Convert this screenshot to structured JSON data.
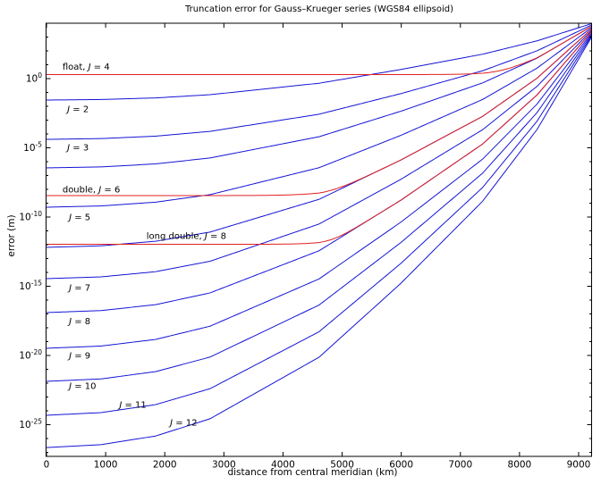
{
  "figure": {
    "title": "Truncation error for Gauss–Krueger series (WGS84 ellipsoid)",
    "xlabel": "distance from central meridian (km)",
    "ylabel": "error (m)",
    "background": "#ffffff"
  },
  "chart_data": {
    "type": "line",
    "title": "Truncation error for Gauss–Krueger series (WGS84 ellipsoid)",
    "xlabel": "distance from central meridian (km)",
    "ylabel": "error (m)",
    "x_axis": {
      "min": 0,
      "max": 9220,
      "tick_step": 1000,
      "tick_labels": [
        "0",
        "1000",
        "2000",
        "3000",
        "4000",
        "5000",
        "6000",
        "7000",
        "8000",
        "9000"
      ]
    },
    "y_axis": {
      "scale": "log10",
      "unit": "m",
      "top_exponent": 4.0,
      "bottom_exponent": -27.3,
      "major_tick_exponents": [
        0,
        -5,
        -10,
        -15,
        -20,
        -25
      ],
      "minor_ticks": "every decade"
    },
    "colors": {
      "truncation_curve": "#1414d6",
      "roundoff_curve": "#e02020",
      "axis": "#000000",
      "text": "#000000"
    },
    "legend_position": "none",
    "grid": false,
    "shape_profile": {
      "comment": "normalized decay of log10(error) gap from start value to convergence value vs normalized distance",
      "t": [
        0,
        0.1,
        0.2,
        0.3,
        0.4,
        0.5,
        0.65,
        0.8,
        0.9,
        1
      ],
      "g": [
        1,
        0.993,
        0.972,
        0.93,
        0.855,
        0.78,
        0.6,
        0.4,
        0.225,
        0
      ]
    },
    "truncation_series": [
      {
        "J": 2,
        "start_exponent": -1.55,
        "end_exponent": 3.97
      },
      {
        "J": 3,
        "start_exponent": -4.39,
        "end_exponent": 3.87
      },
      {
        "J": 4,
        "start_exponent": -6.45,
        "end_exponent": 3.78
      },
      {
        "J": 5,
        "start_exponent": -9.29,
        "end_exponent": 3.68
      },
      {
        "J": 6,
        "start_exponent": -12.19,
        "end_exponent": 3.58
      },
      {
        "J": 7,
        "start_exponent": -14.45,
        "end_exponent": 3.48
      },
      {
        "J": 8,
        "start_exponent": -16.9,
        "end_exponent": 3.39
      },
      {
        "J": 9,
        "start_exponent": -19.48,
        "end_exponent": 3.29
      },
      {
        "J": 10,
        "start_exponent": -21.87,
        "end_exponent": 3.19
      },
      {
        "J": 11,
        "start_exponent": -24.32,
        "end_exponent": 3.1
      },
      {
        "J": 12,
        "start_exponent": -26.65,
        "end_exponent": 3.0
      }
    ],
    "sample_exponents": {
      "km_grid": [
        0,
        2000,
        4000,
        6000,
        8000,
        9200
      ],
      "J2": [
        -1.55,
        -1.31,
        -0.56,
        0.58,
        2.43,
        3.94
      ],
      "J3": [
        -4.39,
        -4.11,
        -2.99,
        -1.25,
        1.55,
        3.83
      ],
      "J4": [
        -6.45,
        -6.14,
        -4.74,
        -2.58,
        0.89,
        3.73
      ],
      "J5": [
        -9.29,
        -8.85,
        -7.08,
        -4.35,
        0.03,
        3.62
      ],
      "J6": [
        -12.19,
        -11.65,
        -9.5,
        -6.19,
        -0.85,
        3.5
      ],
      "J7": [
        -14.45,
        -13.87,
        -11.43,
        -7.65,
        -1.57,
        3.39
      ],
      "J8": [
        -16.9,
        -16.19,
        -13.43,
        -9.17,
        -2.31,
        3.29
      ],
      "J9": [
        -19.48,
        -18.7,
        -15.6,
        -10.81,
        -3.11,
        3.18
      ],
      "J10": [
        -21.87,
        -21.02,
        -17.61,
        -12.34,
        -3.86,
        3.06
      ],
      "J11": [
        -24.32,
        -23.34,
        -19.62,
        -13.86,
        -4.6,
        2.96
      ],
      "J12": [
        -26.65,
        -25.56,
        -21.54,
        -15.32,
        -5.32,
        2.85
      ]
    },
    "roundoff_series": [
      {
        "name": "float",
        "flat_exponent": 0.29,
        "follows_J": 4
      },
      {
        "name": "double",
        "flat_exponent": -8.45,
        "follows_J": 6
      },
      {
        "name": "long double",
        "flat_exponent": -11.97,
        "follows_J": 8
      }
    ],
    "annotations": [
      {
        "text": "float,  J = 4",
        "km": 270,
        "exp": 0.87
      },
      {
        "text": "J = 2",
        "km": 350,
        "exp": -2.2
      },
      {
        "text": "J = 3",
        "km": 350,
        "exp": -4.97
      },
      {
        "text": "double,  J = 6",
        "km": 270,
        "exp": -8.0
      },
      {
        "text": "J = 5",
        "km": 380,
        "exp": -10.0
      },
      {
        "text": "long double,  J = 8",
        "km": 1690,
        "exp": -11.35
      },
      {
        "text": "J = 7",
        "km": 380,
        "exp": -15.1
      },
      {
        "text": "J = 8",
        "km": 380,
        "exp": -17.5
      },
      {
        "text": "J = 9",
        "km": 380,
        "exp": -20.0
      },
      {
        "text": "J = 10",
        "km": 380,
        "exp": -22.2
      },
      {
        "text": "J = 11",
        "km": 1230,
        "exp": -23.55
      },
      {
        "text": "J = 12",
        "km": 2090,
        "exp": -24.84
      }
    ]
  }
}
